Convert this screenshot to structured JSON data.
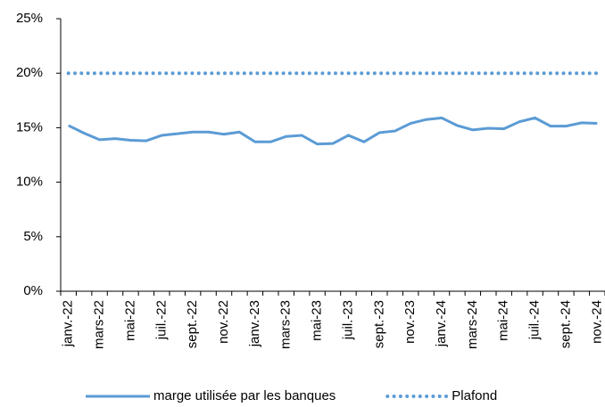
{
  "chart_data": {
    "type": "line",
    "categories": [
      "janv.-22",
      null,
      "mars-22",
      null,
      "mai-22",
      null,
      "juil.-22",
      null,
      "sept.-22",
      null,
      "nov.-22",
      null,
      "janv.-23",
      null,
      "mars-23",
      null,
      "mai-23",
      null,
      "juil.-23",
      null,
      "sept.-23",
      null,
      "nov.-23",
      null,
      "janv.-24",
      null,
      "mars-24",
      null,
      "mai-24",
      null,
      "juil.-24",
      null,
      "sept.-24",
      null,
      "nov.-24"
    ],
    "series": [
      {
        "name": "marge utilisée par les banques",
        "color": "#5b9bd5",
        "style": "solid",
        "values": [
          15.2,
          14.5,
          13.9,
          14.0,
          13.85,
          13.8,
          14.3,
          14.45,
          14.6,
          14.6,
          14.4,
          14.6,
          13.7,
          13.7,
          14.2,
          14.3,
          13.5,
          13.55,
          14.3,
          13.7,
          14.55,
          14.7,
          15.4,
          15.75,
          15.9,
          15.2,
          14.8,
          14.95,
          14.9,
          15.55,
          15.9,
          15.15,
          15.15,
          15.45,
          15.4
        ]
      },
      {
        "name": "Plafond",
        "color": "#5b9bd5",
        "style": "dotted",
        "values": [
          20,
          20,
          20,
          20,
          20,
          20,
          20,
          20,
          20,
          20,
          20,
          20,
          20,
          20,
          20,
          20,
          20,
          20,
          20,
          20,
          20,
          20,
          20,
          20,
          20,
          20,
          20,
          20,
          20,
          20,
          20,
          20,
          20,
          20,
          20
        ]
      }
    ],
    "ylim": [
      0,
      25
    ],
    "yticks": [
      {
        "value": 0,
        "label": "0%"
      },
      {
        "value": 5,
        "label": "5%"
      },
      {
        "value": 10,
        "label": "10%"
      },
      {
        "value": 15,
        "label": "15%"
      },
      {
        "value": 20,
        "label": "20%"
      },
      {
        "value": 25,
        "label": "25%"
      }
    ],
    "grid": false,
    "legend": "bottom"
  }
}
